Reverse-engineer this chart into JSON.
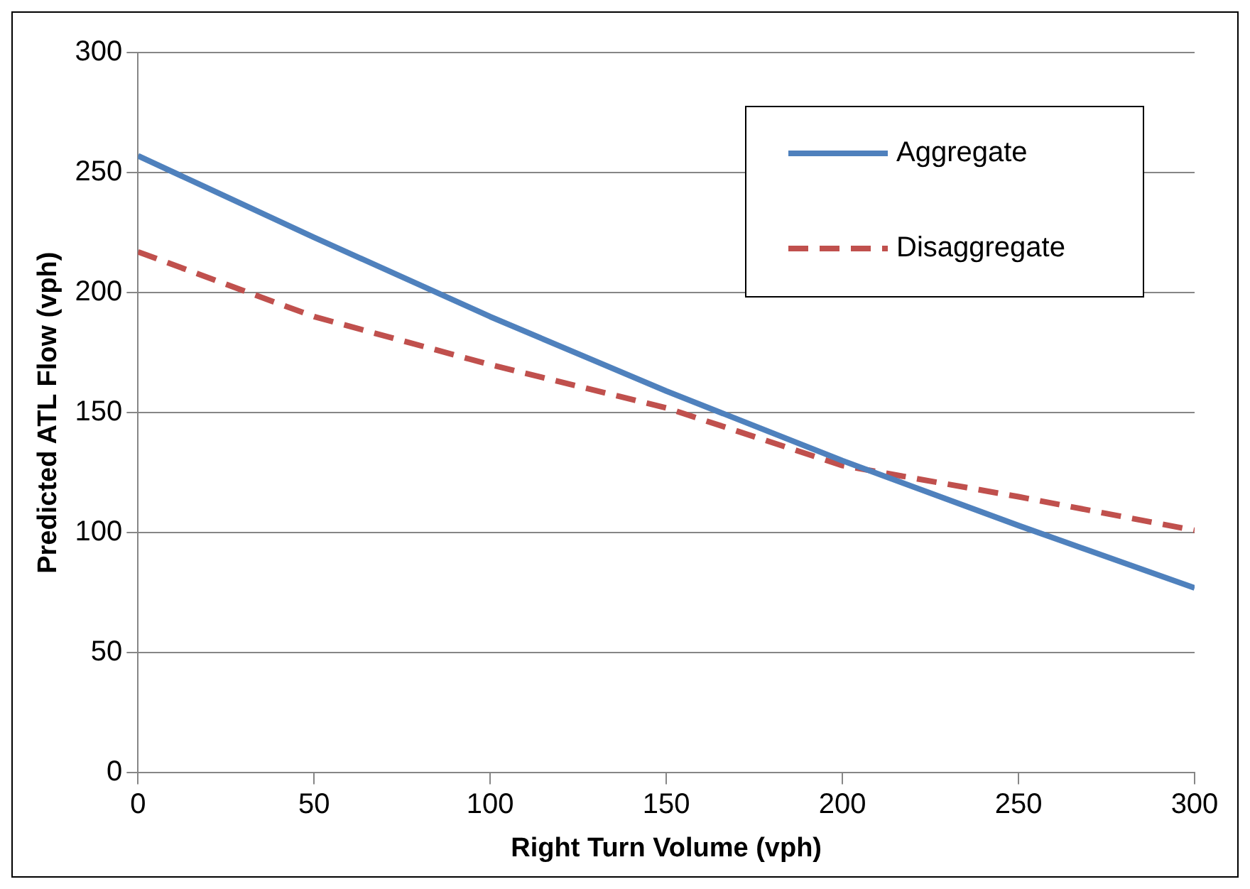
{
  "chart_data": {
    "type": "line",
    "xlabel": "Right Turn Volume (vph)",
    "ylabel": "Predicted ATL Flow (vph)",
    "x": [
      0,
      50,
      100,
      150,
      200,
      250,
      300
    ],
    "series": [
      {
        "name": "Aggregate",
        "color": "#4f81bd",
        "values": [
          257,
          223,
          190,
          159,
          130,
          103,
          77
        ],
        "line_style": "solid"
      },
      {
        "name": "Disaggregate",
        "color": "#c0504d",
        "values": [
          217,
          190,
          170,
          152,
          128,
          115,
          101
        ],
        "line_style": "dashed"
      }
    ],
    "xlim": [
      0,
      300
    ],
    "xticks": [
      0,
      50,
      100,
      150,
      200,
      250,
      300
    ],
    "ylim": [
      0,
      300
    ],
    "yticks": [
      0,
      50,
      100,
      150,
      200,
      250,
      300
    ],
    "grid": "y",
    "legend": "top right",
    "marker": "none"
  }
}
